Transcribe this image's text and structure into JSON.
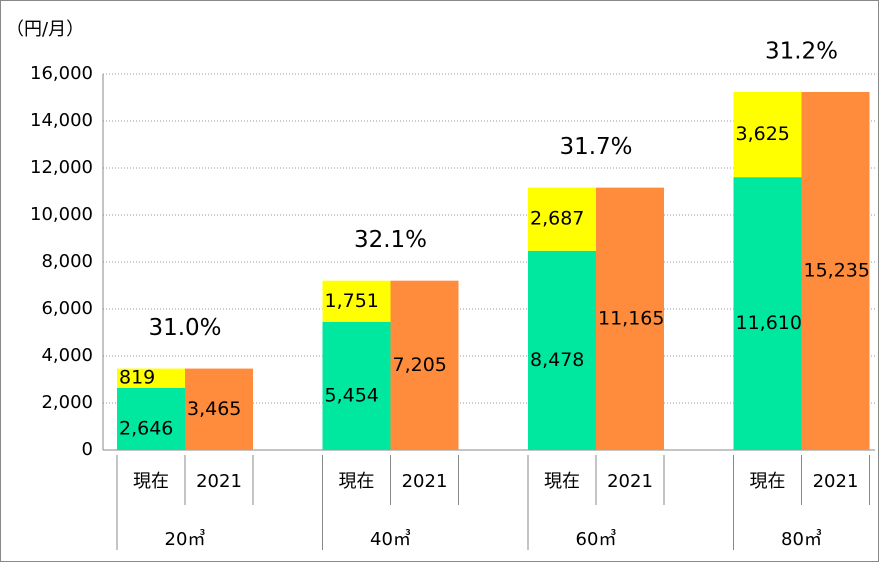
{
  "chart_data": {
    "type": "bar",
    "y_label": "（円/月）",
    "groups": [
      "20㎥",
      "40㎥",
      "60㎥",
      "80㎥"
    ],
    "categories": [
      "現在",
      "2021",
      "現在",
      "2021",
      "現在",
      "2021",
      "現在",
      "2021"
    ],
    "series": [
      {
        "color": "#00e8a0",
        "values": [
          2646,
          null,
          5454,
          null,
          8478,
          null,
          11610,
          null
        ],
        "value_labels": [
          "2,646",
          null,
          "5,454",
          null,
          "8,478",
          null,
          "11,610",
          null
        ]
      },
      {
        "color": "#ffff00",
        "values": [
          819,
          null,
          1751,
          null,
          2687,
          null,
          3625,
          null
        ],
        "value_labels": [
          "819",
          null,
          "1,751",
          null,
          "2,687",
          null,
          "3,625",
          null
        ]
      },
      {
        "color": "#ff8c3c",
        "values": [
          null,
          3465,
          null,
          7205,
          null,
          11165,
          null,
          15235
        ],
        "value_labels": [
          null,
          "3,465",
          null,
          "7,205",
          null,
          "11,165",
          null,
          "15,235"
        ]
      }
    ],
    "annotations": [
      "31.0%",
      "32.1%",
      "31.7%",
      "31.2%"
    ],
    "ylim": [
      0,
      16000
    ],
    "yticks": [
      0,
      {
        "value": 2000,
        "label": "2,000"
      },
      {
        "value": 4000,
        "label": "4,000"
      },
      {
        "value": 6000,
        "label": "6,000"
      },
      {
        "value": 8000,
        "label": "8,000"
      },
      {
        "value": 10000,
        "label": "10,000"
      },
      {
        "value": 12000,
        "label": "12,000"
      },
      {
        "value": 14000,
        "label": "14,000"
      },
      {
        "value": 16000,
        "label": "16,000"
      }
    ],
    "grid": true
  }
}
